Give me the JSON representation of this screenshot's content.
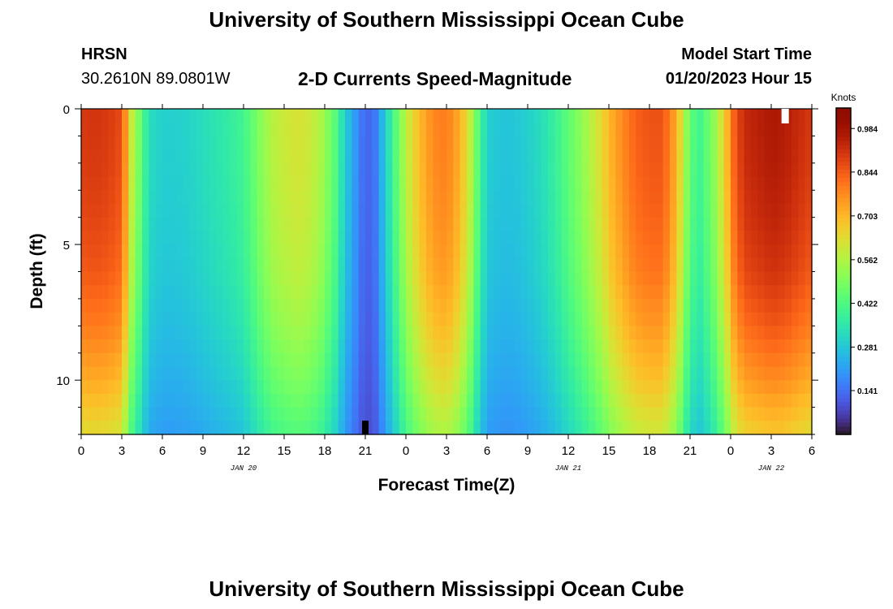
{
  "header": {
    "title": "University of Southern Mississippi Ocean Cube",
    "station_name": "HRSN",
    "station_coords": "30.2610N  89.0801W",
    "subtitle": "2-D Currents Speed-Magnitude",
    "model_label": "Model Start Time",
    "model_time": "01/20/2023 Hour 15"
  },
  "footer": {
    "title": "University of Southern Mississippi Ocean Cube"
  },
  "chart_data": {
    "type": "heatmap",
    "title": "2-D Currents Speed-Magnitude",
    "xlabel": "Forecast Time(Z)",
    "ylabel": "Depth (ft)",
    "x_unit": "forecast hours from 0Z JAN 20",
    "xlim": [
      0,
      54
    ],
    "ylim": [
      12,
      0
    ],
    "x_tick_values": [
      0,
      3,
      6,
      9,
      12,
      15,
      18,
      21,
      24,
      27,
      30,
      33,
      36,
      39,
      42,
      45,
      48,
      51,
      54
    ],
    "x_tick_labels": [
      "0",
      "3",
      "6",
      "9",
      "12",
      "15",
      "18",
      "21",
      "0",
      "3",
      "6",
      "9",
      "12",
      "15",
      "18",
      "21",
      "0",
      "3",
      "6"
    ],
    "day_labels": [
      {
        "hour": 12,
        "label": "JAN 20"
      },
      {
        "hour": 36,
        "label": "JAN 21"
      },
      {
        "hour": 51,
        "label": "JAN 22"
      }
    ],
    "y_tick_values": [
      0,
      5,
      10
    ],
    "y_tick_labels": [
      "0",
      "5",
      "10"
    ],
    "colorbar": {
      "label": "Knots",
      "min": 0.0,
      "max": 1.05,
      "ticks": [
        0.984,
        0.844,
        0.703,
        0.562,
        0.422,
        0.281,
        0.141
      ],
      "tick_labels": [
        "0.984",
        "0.844",
        "0.703",
        "0.562",
        "0.422",
        "0.281",
        "0.141"
      ]
    },
    "time_profile": {
      "hours": [
        0,
        1,
        2,
        3,
        3.7,
        4.3,
        5,
        6,
        7,
        8,
        9,
        10,
        11,
        12,
        12.7,
        13.5,
        14.3,
        15,
        16,
        17,
        17.8,
        18.7,
        19.5,
        20.3,
        21,
        21.7,
        22.5,
        23.3,
        24,
        25,
        26,
        27,
        28,
        28.7,
        29.3,
        30,
        31,
        32,
        33,
        34,
        35,
        36,
        37,
        38,
        38.5,
        39.2,
        40,
        41,
        42,
        43,
        44,
        45,
        45.7,
        46.5,
        47,
        47.7,
        48.3,
        49,
        50,
        51,
        52,
        53,
        54
      ],
      "surface_speed": [
        0.9,
        0.91,
        0.9,
        0.87,
        0.6,
        0.48,
        0.33,
        0.3,
        0.3,
        0.31,
        0.33,
        0.35,
        0.37,
        0.4,
        0.46,
        0.53,
        0.58,
        0.6,
        0.62,
        0.6,
        0.55,
        0.45,
        0.3,
        0.2,
        0.12,
        0.15,
        0.3,
        0.45,
        0.58,
        0.7,
        0.78,
        0.8,
        0.72,
        0.6,
        0.45,
        0.3,
        0.28,
        0.28,
        0.3,
        0.33,
        0.38,
        0.45,
        0.52,
        0.6,
        0.65,
        0.72,
        0.78,
        0.84,
        0.86,
        0.86,
        0.72,
        0.45,
        0.4,
        0.48,
        0.55,
        0.7,
        0.85,
        0.93,
        0.95,
        0.97,
        0.96,
        0.93,
        0.9
      ]
    },
    "depth_profile": {
      "depths_ft": [
        0,
        2,
        4,
        6,
        8,
        10,
        12
      ],
      "scale": [
        1.0,
        0.99,
        0.97,
        0.94,
        0.88,
        0.8,
        0.7
      ]
    },
    "minimum_marker": {
      "hour": 21,
      "depth_ft": 12
    },
    "maximum_marker": {
      "hour": 52,
      "depth_ft": 0
    }
  }
}
